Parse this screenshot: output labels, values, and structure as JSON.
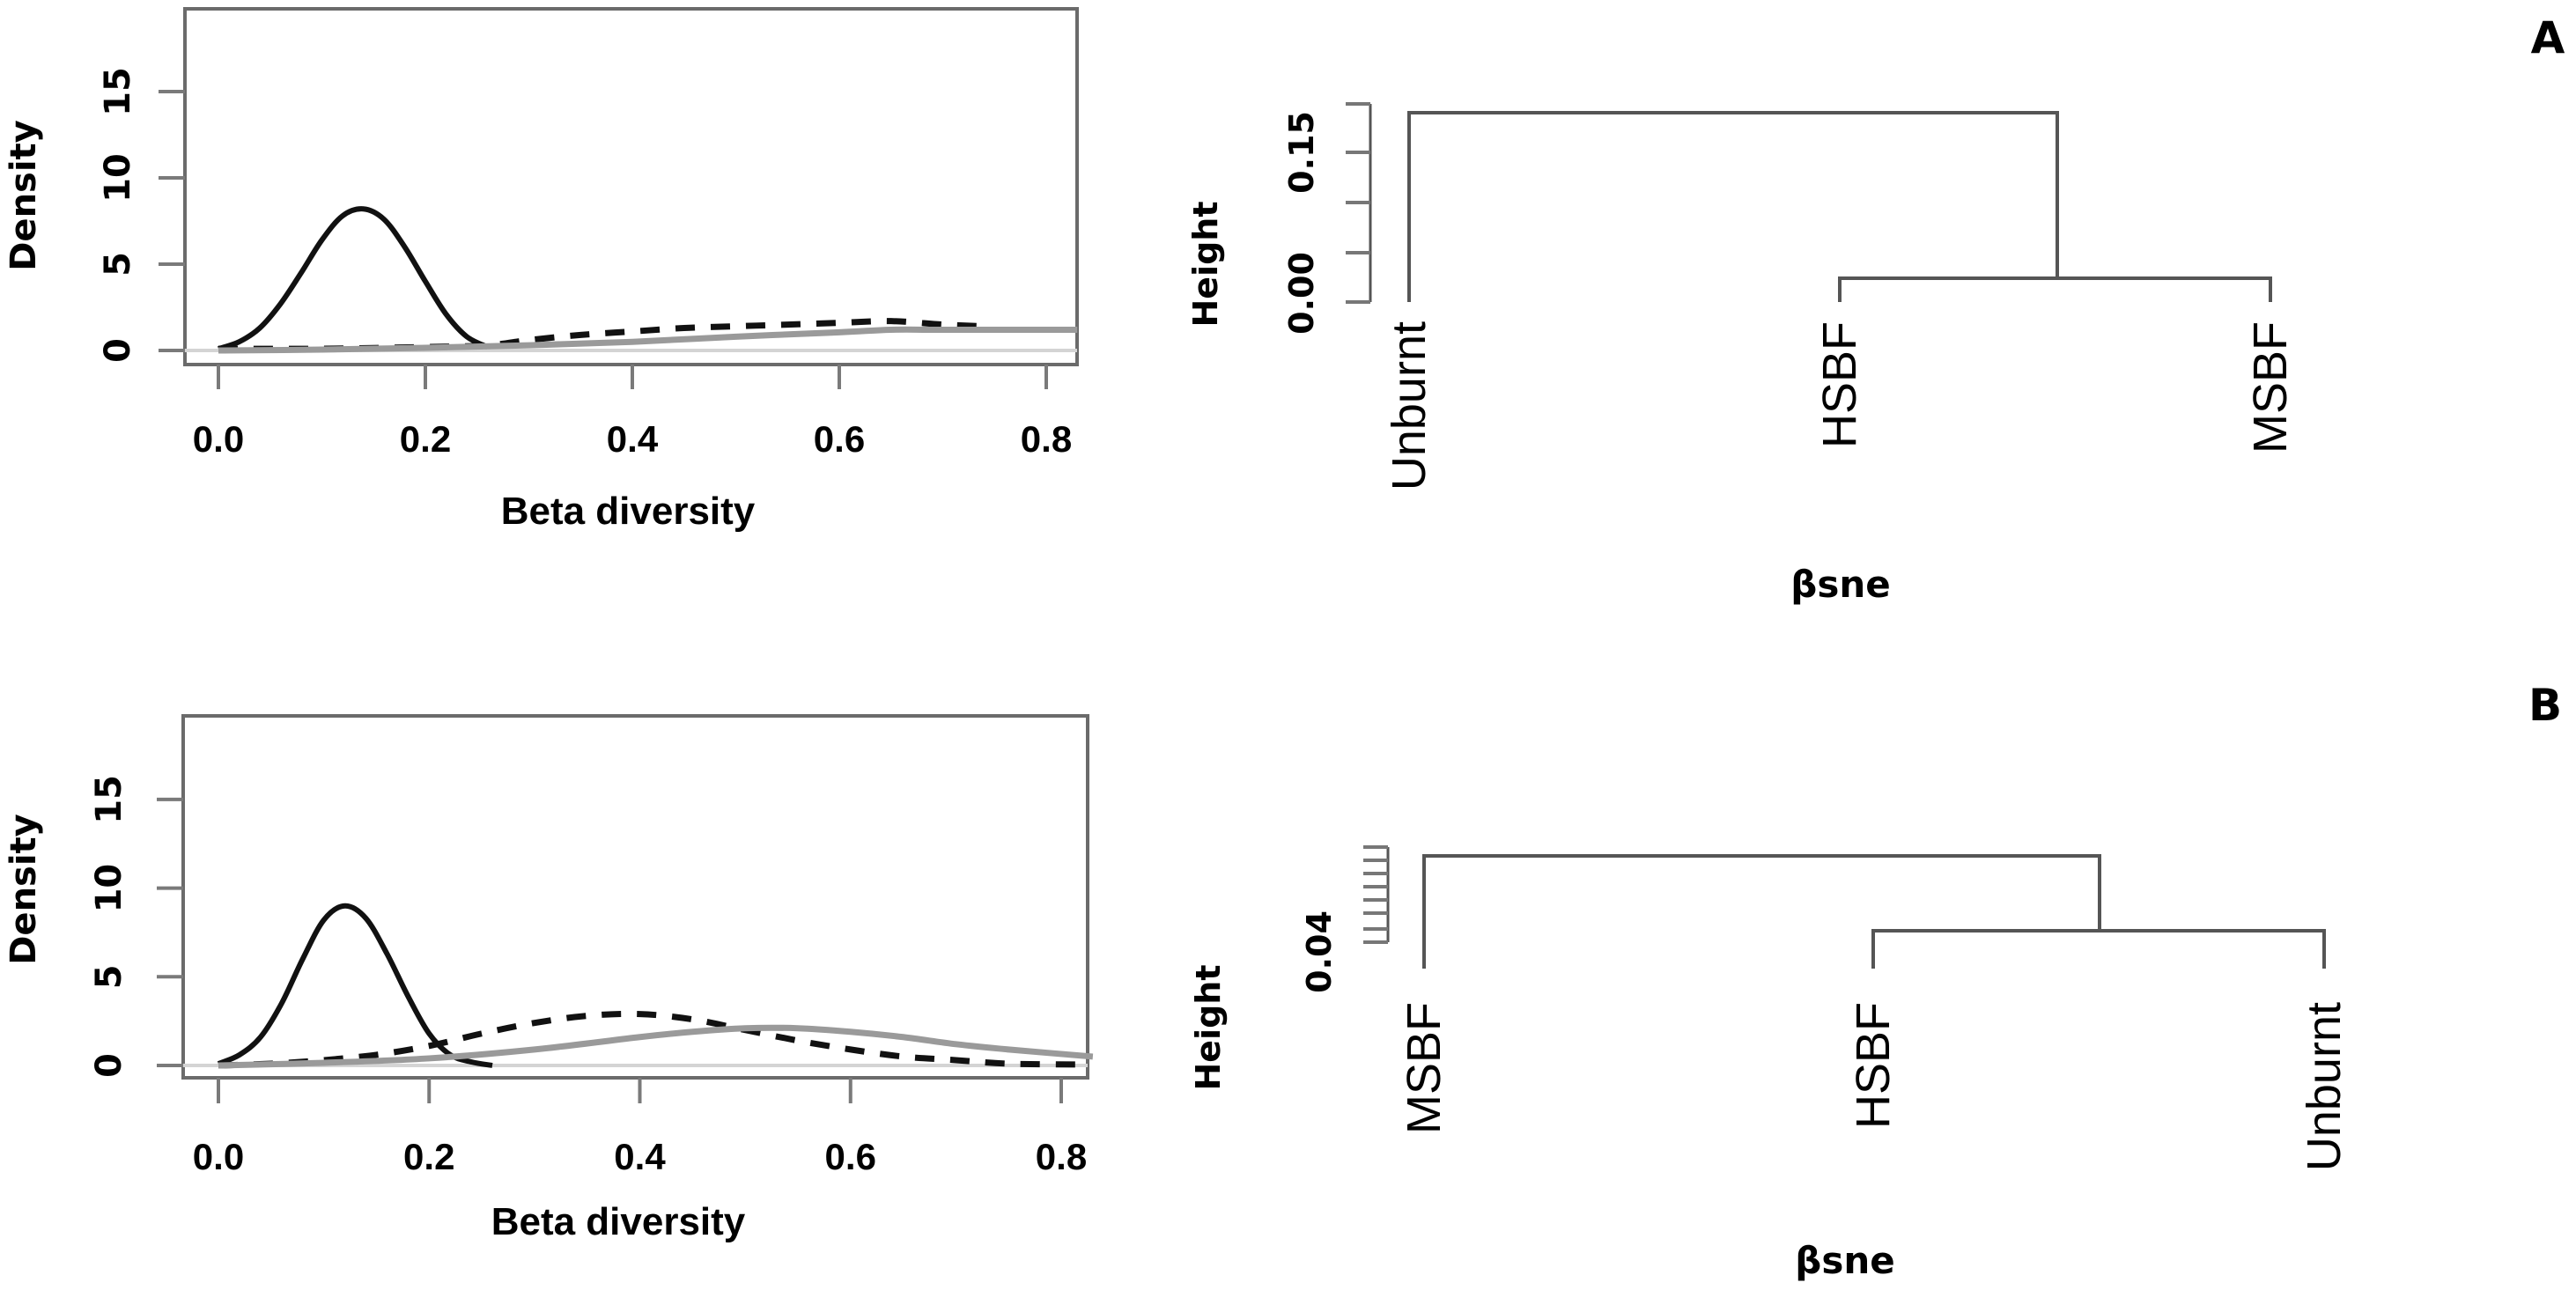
{
  "panel_labels": [
    "A",
    "B"
  ],
  "chart_data": [
    {
      "panel": "A",
      "type": "line",
      "subtype": "density",
      "xlabel": "Beta diversity",
      "ylabel": "Density",
      "xlim": [
        -0.03,
        0.83
      ],
      "ylim": [
        -1,
        20.5
      ],
      "xticks": [
        "0.0",
        "0.2",
        "0.4",
        "0.6",
        "0.8"
      ],
      "yticks": [
        "0",
        "5",
        "10",
        "15"
      ],
      "series": [
        {
          "name": "black-solid",
          "style": "solid",
          "color": "#111111",
          "x": [
            0.0,
            0.02,
            0.04,
            0.06,
            0.08,
            0.1,
            0.12,
            0.14,
            0.16,
            0.18,
            0.2,
            0.22,
            0.24,
            0.26
          ],
          "y": [
            0.1,
            0.5,
            1.3,
            2.7,
            4.5,
            6.4,
            7.8,
            8.2,
            7.6,
            6.0,
            4.0,
            2.1,
            0.8,
            0.2
          ]
        },
        {
          "name": "black-dashed",
          "style": "dashed",
          "color": "#111111",
          "x": [
            0.0,
            0.1,
            0.2,
            0.26,
            0.3,
            0.35,
            0.4,
            0.45,
            0.5,
            0.55,
            0.6,
            0.65,
            0.7,
            0.74
          ],
          "y": [
            0.1,
            0.1,
            0.2,
            0.3,
            0.6,
            0.9,
            1.1,
            1.3,
            1.4,
            1.5,
            1.6,
            1.7,
            1.5,
            1.4
          ]
        },
        {
          "name": "gray-solid",
          "style": "solid",
          "color": "#9a9a9a",
          "x": [
            0.0,
            0.1,
            0.2,
            0.3,
            0.4,
            0.5,
            0.6,
            0.65,
            0.7,
            0.83
          ],
          "y": [
            0.0,
            0.05,
            0.15,
            0.3,
            0.5,
            0.8,
            1.05,
            1.2,
            1.2,
            1.2
          ]
        }
      ]
    },
    {
      "panel": "A",
      "type": "dendrogram",
      "xlabel": "βsne",
      "ylabel": "Height",
      "ylim": [
        0,
        0.2
      ],
      "axis_ticks": [
        0.0,
        0.05,
        0.1,
        0.15,
        0.2
      ],
      "tick_labels": [
        {
          "value": 0.0,
          "text": "0.00"
        },
        {
          "value": 0.15,
          "text": "0.15"
        }
      ],
      "leaves": [
        "Unburnt",
        "HSBF",
        "MSBF"
      ],
      "merges": [
        {
          "left": "HSBF",
          "right": "MSBF",
          "height": 0.024
        },
        {
          "left": "Unburnt",
          "right": "HSBF+MSBF",
          "height": 0.191
        }
      ]
    },
    {
      "panel": "B",
      "type": "line",
      "subtype": "density",
      "xlabel": "Beta diversity",
      "ylabel": "Density",
      "xlim": [
        -0.03,
        0.83
      ],
      "ylim": [
        -1,
        20.5
      ],
      "xticks": [
        "0.0",
        "0.2",
        "0.4",
        "0.6",
        "0.8"
      ],
      "yticks": [
        "0",
        "5",
        "10",
        "15"
      ],
      "series": [
        {
          "name": "black-solid",
          "style": "solid",
          "color": "#111111",
          "x": [
            0.0,
            0.02,
            0.04,
            0.06,
            0.08,
            0.1,
            0.12,
            0.14,
            0.16,
            0.18,
            0.2,
            0.22,
            0.24,
            0.26
          ],
          "y": [
            0.1,
            0.6,
            1.6,
            3.5,
            6.0,
            8.2,
            9.0,
            8.3,
            6.3,
            3.9,
            1.8,
            0.6,
            0.2,
            0.0
          ]
        },
        {
          "name": "black-dashed",
          "style": "dashed",
          "color": "#111111",
          "x": [
            0.0,
            0.05,
            0.1,
            0.15,
            0.2,
            0.25,
            0.3,
            0.35,
            0.4,
            0.45,
            0.5,
            0.55,
            0.6,
            0.65,
            0.7,
            0.75,
            0.82
          ],
          "y": [
            0.0,
            0.1,
            0.3,
            0.6,
            1.1,
            1.8,
            2.4,
            2.8,
            2.9,
            2.6,
            2.0,
            1.4,
            0.9,
            0.5,
            0.3,
            0.1,
            0.05
          ]
        },
        {
          "name": "gray-solid",
          "style": "solid",
          "color": "#9a9a9a",
          "x": [
            0.0,
            0.1,
            0.2,
            0.3,
            0.4,
            0.45,
            0.5,
            0.55,
            0.6,
            0.65,
            0.7,
            0.75,
            0.83
          ],
          "y": [
            0.0,
            0.15,
            0.4,
            0.9,
            1.6,
            1.9,
            2.1,
            2.1,
            1.9,
            1.6,
            1.2,
            0.9,
            0.5
          ]
        }
      ]
    },
    {
      "panel": "B",
      "type": "dendrogram",
      "xlabel": "βsne",
      "ylabel": "Height",
      "axis_ticks_count": 8,
      "tick_labels": [
        {
          "text": "0.04"
        }
      ],
      "leaves": [
        "MSBF",
        "HSBF",
        "Unburnt"
      ],
      "merges": [
        {
          "left": "HSBF",
          "right": "Unburnt",
          "height_fraction": 0.34
        },
        {
          "left": "MSBF",
          "right": "HSBF+Unburnt",
          "height_fraction": 1.0
        }
      ]
    }
  ]
}
